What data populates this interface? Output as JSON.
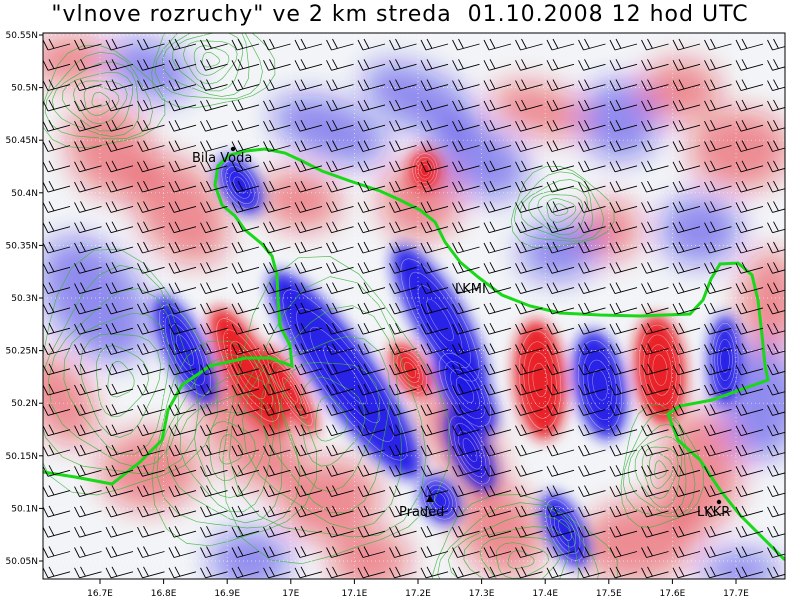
{
  "title": "\"vlnove rozruchy\" ve 2 km streda  01.10.2008 12 hod UTC",
  "x_ticks": [
    "16.7E",
    "16.8E",
    "16.9E",
    "17E",
    "17.1E",
    "17.2E",
    "17.3E",
    "17.4E",
    "17.5E",
    "17.6E",
    "17.7E"
  ],
  "y_ticks": [
    "50.55N",
    "50.5N",
    "50.45N",
    "50.4N",
    "50.35N",
    "50.3N",
    "50.25N",
    "50.2N",
    "50.15N",
    "50.1N",
    "50.05N"
  ],
  "places": [
    {
      "name": "Bila Voda",
      "marker": "dot"
    },
    {
      "name": "LKMI",
      "marker": "none"
    },
    {
      "name": "Praded",
      "marker": "triangle"
    },
    {
      "name": "LKKR",
      "marker": "dot"
    }
  ],
  "colors": {
    "positive": "#e8141e",
    "negative": "#1c14e6",
    "boundary": "#18d818",
    "contour": "#32b432",
    "wind_barb": "#000000"
  },
  "wind_barb_icon": "wind-barb-icon"
}
